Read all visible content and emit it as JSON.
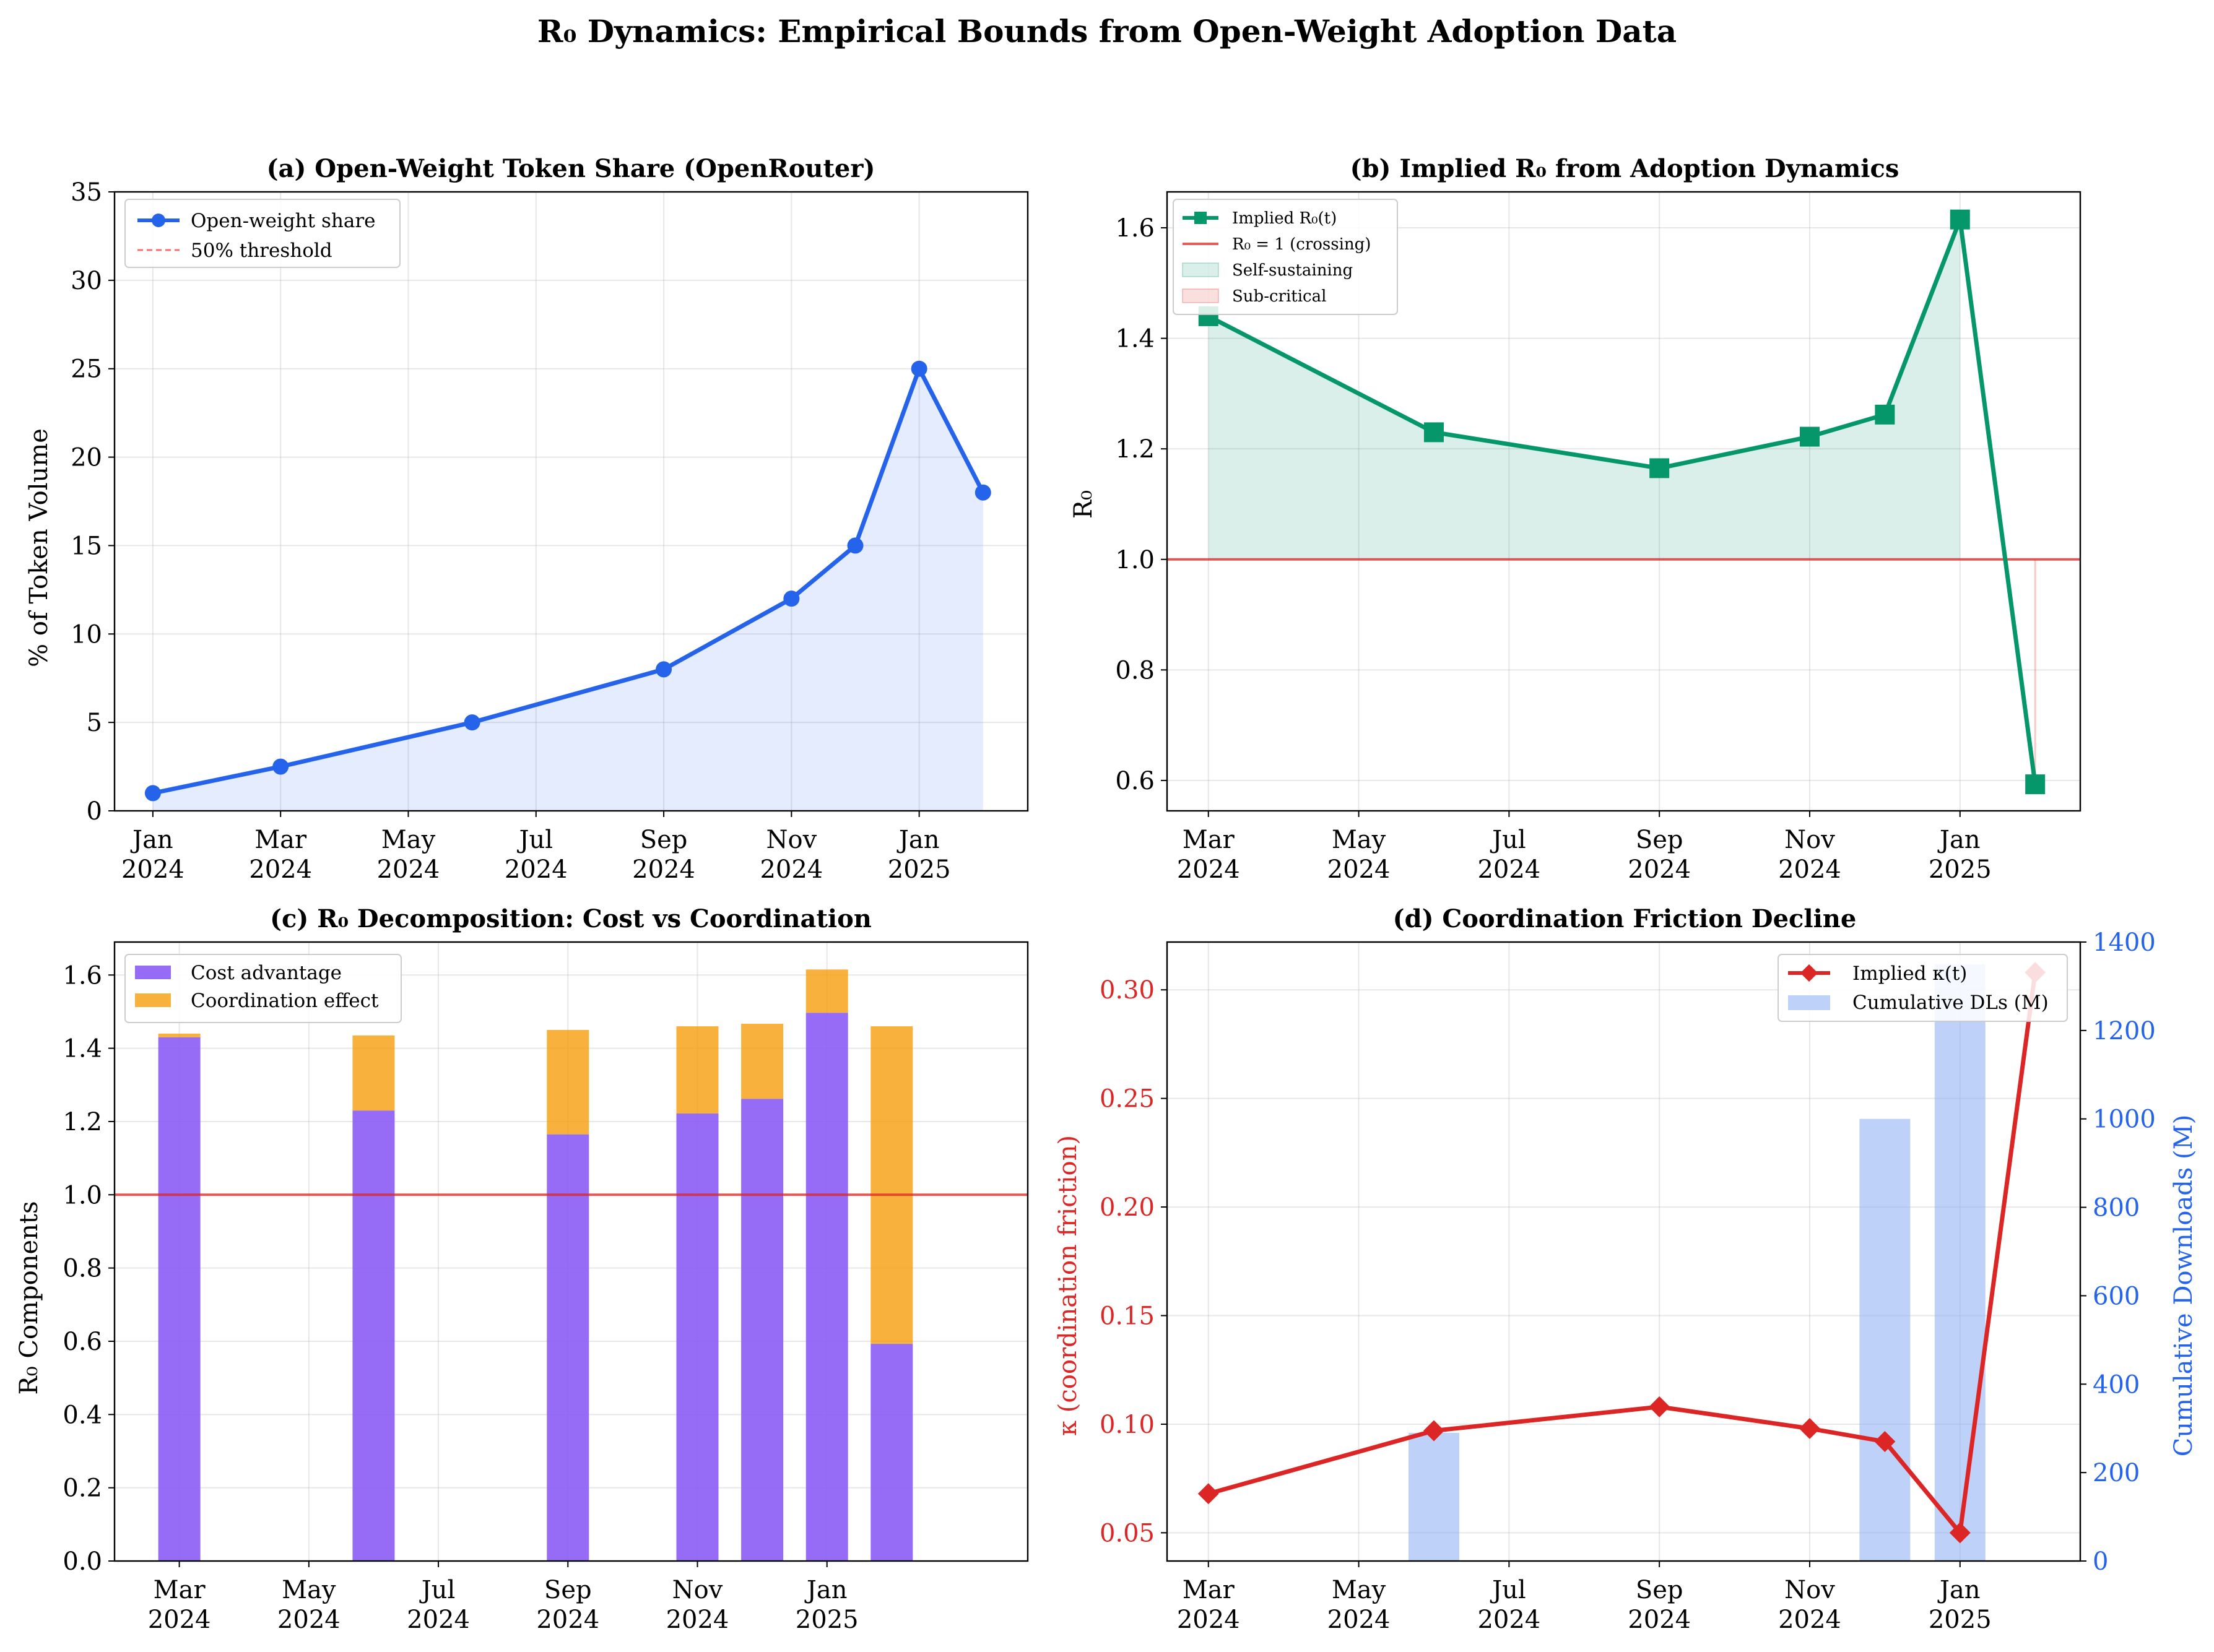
{
  "title": "R₀ Dynamics: Empirical Bounds from Open-Weight Adoption Data",
  "colors": {
    "blue": "#2563eb",
    "green": "#059669",
    "red": "#dc2626",
    "purple": "#8b5cf6",
    "orange": "#f59e0b",
    "crit": "#dc2626",
    "bar_blue": "#93b3f3"
  },
  "chart_data": [
    {
      "id": "a",
      "type": "line",
      "title": "(a) Open-Weight Token Share (OpenRouter)",
      "xlabel": "",
      "ylabel": "% of Token Volume",
      "x": [
        "2024-01",
        "2024-03",
        "2024-06",
        "2024-09",
        "2024-11",
        "2024-12",
        "2025-01",
        "2025-02"
      ],
      "y": [
        1,
        2.5,
        5,
        8,
        12,
        15,
        25,
        18
      ],
      "ylim": [
        0,
        35
      ],
      "yticks": [
        "0",
        "5",
        "10",
        "15",
        "20",
        "25",
        "30",
        "35"
      ],
      "xticks": [
        [
          "Jan",
          "2024"
        ],
        [
          "Mar",
          "2024"
        ],
        [
          "May",
          "2024"
        ],
        [
          "Jul",
          "2024"
        ],
        [
          "Sep",
          "2024"
        ],
        [
          "Nov",
          "2024"
        ],
        [
          "Jan",
          "2025"
        ]
      ],
      "legend": [
        "Open-weight share",
        "50% threshold"
      ],
      "legend_position": "top-left",
      "grid": true
    },
    {
      "id": "b",
      "type": "line",
      "title": "(b) Implied R₀ from Adoption Dynamics",
      "xlabel": "",
      "ylabel": "R₀",
      "x": [
        "2024-03",
        "2024-06",
        "2024-09",
        "2024-11",
        "2024-12",
        "2025-01",
        "2025-02"
      ],
      "y": [
        1.44,
        1.23,
        1.165,
        1.222,
        1.262,
        1.615,
        0.593
      ],
      "ylim": [
        0.545,
        1.665
      ],
      "yticks": [
        "0.6",
        "0.8",
        "1.0",
        "1.2",
        "1.4",
        "1.6"
      ],
      "xticks": [
        [
          "Mar",
          "2024"
        ],
        [
          "May",
          "2024"
        ],
        [
          "Jul",
          "2024"
        ],
        [
          "Sep",
          "2024"
        ],
        [
          "Nov",
          "2024"
        ],
        [
          "Jan",
          "2025"
        ]
      ],
      "reference_line": 1.0,
      "legend": [
        "Implied R₀(t)",
        "R₀ = 1 (crossing)",
        "Self-sustaining",
        "Sub-critical"
      ],
      "legend_position": "top-left",
      "grid": true
    },
    {
      "id": "c",
      "type": "bar",
      "title": "(c) R₀ Decomposition: Cost vs Coordination",
      "xlabel": "",
      "ylabel": "R₀ Components",
      "x": [
        "2024-03",
        "2024-06",
        "2024-09",
        "2024-11",
        "2024-12",
        "2025-01",
        "2025-02"
      ],
      "series": [
        {
          "name": "Cost advantage",
          "values": [
            1.43,
            1.23,
            1.165,
            1.222,
            1.262,
            1.497,
            0.593
          ]
        },
        {
          "name": "Coordination effect",
          "values": [
            0.01,
            0.205,
            0.285,
            0.238,
            0.205,
            0.118,
            0.867
          ]
        }
      ],
      "ylim": [
        0,
        1.69
      ],
      "yticks": [
        "0.0",
        "0.2",
        "0.4",
        "0.6",
        "0.8",
        "1.0",
        "1.2",
        "1.4",
        "1.6"
      ],
      "xticks": [
        [
          "Mar",
          "2024"
        ],
        [
          "May",
          "2024"
        ],
        [
          "Jul",
          "2024"
        ],
        [
          "Sep",
          "2024"
        ],
        [
          "Nov",
          "2024"
        ],
        [
          "Jan",
          "2025"
        ]
      ],
      "reference_line": 1.0,
      "legend_position": "top-left",
      "grid": true
    },
    {
      "id": "d",
      "type": "line",
      "title": "(d) Coordination Friction Decline",
      "xlabel": "",
      "ylabel": "κ (coordination friction)",
      "ylabel_right": "Cumulative Downloads (M)",
      "x": [
        "2024-03",
        "2024-06",
        "2024-09",
        "2024-11",
        "2024-12",
        "2025-01",
        "2025-02"
      ],
      "y": [
        0.068,
        0.097,
        0.108,
        0.098,
        0.092,
        0.05,
        0.308
      ],
      "ylim": [
        0.037,
        0.322
      ],
      "yticks": [
        "0.05",
        "0.10",
        "0.15",
        "0.20",
        "0.25",
        "0.30"
      ],
      "bars": {
        "x": [
          "2024-06",
          "2024-12",
          "2025-01"
        ],
        "values": [
          290,
          1000,
          1350
        ]
      },
      "ylim_right": [
        0,
        1400
      ],
      "yticks_right": [
        "0",
        "200",
        "400",
        "600",
        "800",
        "1000",
        "1200",
        "1400"
      ],
      "xticks": [
        [
          "Mar",
          "2024"
        ],
        [
          "May",
          "2024"
        ],
        [
          "Jul",
          "2024"
        ],
        [
          "Sep",
          "2024"
        ],
        [
          "Nov",
          "2024"
        ],
        [
          "Jan",
          "2025"
        ]
      ],
      "legend": [
        "Implied κ(t)",
        "Cumulative DLs (M)"
      ],
      "legend_position": "top-right",
      "grid": true
    }
  ]
}
